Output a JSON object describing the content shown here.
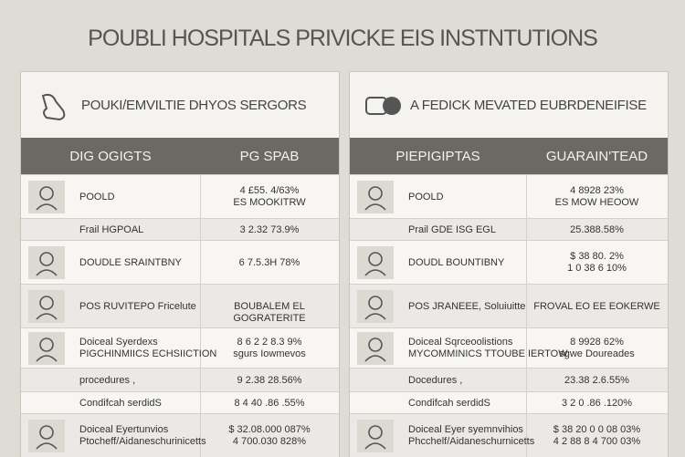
{
  "title": "POUBLI HOSPITALS PRIVICKE EIS INSTNTUTIONS",
  "panels": [
    {
      "heading": "POUKI/EMVILTIE DHYOS SERGORS",
      "columns": [
        "DIG OGIGTS",
        "PG SPAB"
      ],
      "rows": [
        {
          "label": [
            "POOLD"
          ],
          "value": [
            "4 £55. 4/63%",
            "ES MOOKITRW"
          ]
        },
        {
          "label": [
            "Frail HGPOAL"
          ],
          "value": [
            "3 2.32 73.9%"
          ]
        },
        {
          "label": [
            "DOUDLE SRAINTBNY"
          ],
          "value": [
            "6 7.5.3H 78%"
          ]
        },
        {
          "label": [
            "POS RUVITEPO Fricelute"
          ],
          "value": [
            "BOUBALEM EL GOGRATERITE"
          ]
        },
        {
          "label": [
            "Doiceal Syerdexs",
            "PIGCHINMIICS ECHSIICTION"
          ],
          "value": [
            "8 6 2 2 8.3 9%",
            "sgurs Iowmevos"
          ]
        },
        {
          "label": [
            "procedures ,"
          ],
          "value": [
            "9 2.38 28.56%"
          ]
        },
        {
          "label": [
            "Condifcah serdidS"
          ],
          "value": [
            "8 4 40 .86 .55%"
          ]
        },
        {
          "label": [
            "Doiceal Eyertunvios",
            "Ptocheff/Aidaneschurinicetts"
          ],
          "value": [
            "$ 32.08.000 087%",
            "4 700.030 828%"
          ]
        }
      ]
    },
    {
      "heading": "A FEDICK MEVATED EUBRDENEIFISE",
      "columns": [
        "PIEPIGIPTAS",
        "GUARAIN'TEAD"
      ],
      "rows": [
        {
          "label": [
            "POOLD"
          ],
          "value": [
            "4 8928 23%",
            "ES MOW HEOOW"
          ]
        },
        {
          "label": [
            "Prail GDE ISG EGL"
          ],
          "value": [
            "25.388.58%"
          ]
        },
        {
          "label": [
            "DOUDL BOUNTIBNY"
          ],
          "value": [
            "$ 38 80. 2%",
            "1 0 38 6 10%"
          ]
        },
        {
          "label": [
            "POS JRANEEE, Soluiuitte"
          ],
          "value": [
            "FROVAL EO EE EOKERWE"
          ]
        },
        {
          "label": [
            "Doiceal Sqrceoolistions",
            "MYCOMMINICS TTOUBE IERTOW"
          ],
          "value": [
            "8 9928 62%",
            "sgwe Doureades"
          ]
        },
        {
          "label": [
            "Docedures ,"
          ],
          "value": [
            "23.38 2.6.55%"
          ]
        },
        {
          "label": [
            "Condifcah serdidS"
          ],
          "value": [
            "3 2 0 .86 .120%"
          ]
        },
        {
          "label": [
            "Doiceal Eyer syemnvihios",
            "Phcchelf/Aidaneschurnicetts"
          ],
          "value": [
            "$ 38 20 0 0 08 03%",
            "4 2 88 8 4 700 03%"
          ]
        }
      ]
    }
  ]
}
